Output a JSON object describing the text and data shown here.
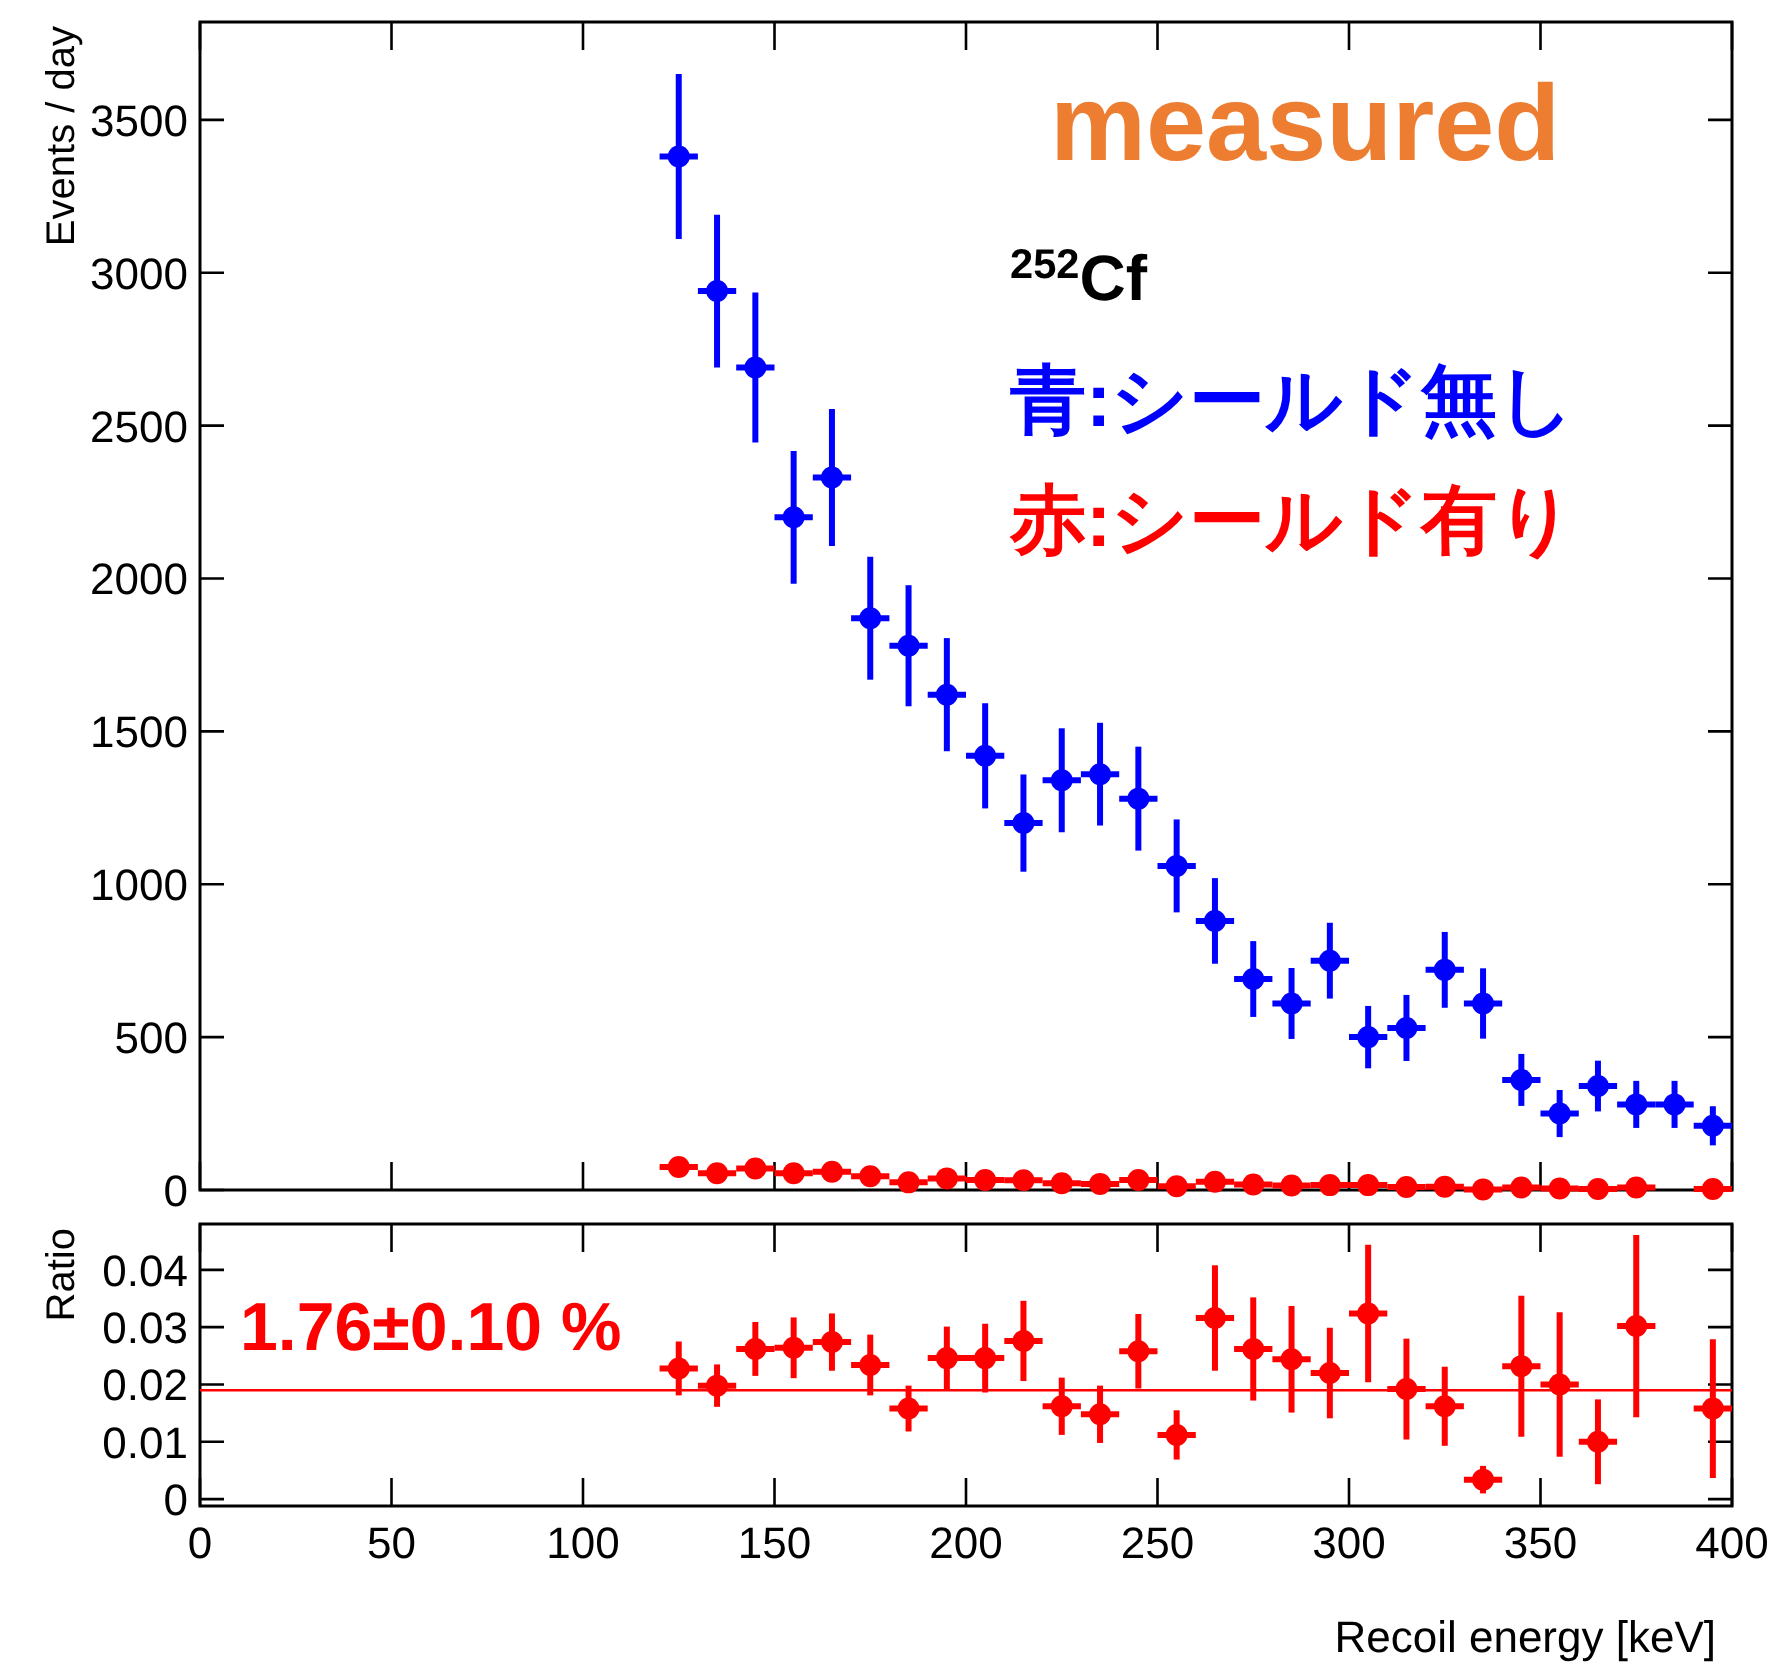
{
  "chart_data": [
    {
      "type": "scatter",
      "ylabel": "Events / day",
      "xlim": [
        0,
        400
      ],
      "xticks": [
        0,
        50,
        100,
        150,
        200,
        250,
        300,
        350,
        400
      ],
      "ylim": [
        0,
        3820
      ],
      "yticks": [
        0,
        500,
        1000,
        1500,
        2000,
        2500,
        3000,
        3500
      ],
      "tick_labels": "y",
      "marker": "circle",
      "legend": "top right",
      "grid": false,
      "x": [
        125,
        135,
        145,
        155,
        165,
        175,
        185,
        195,
        205,
        215,
        225,
        235,
        245,
        255,
        265,
        275,
        285,
        295,
        305,
        315,
        325,
        335,
        345,
        355,
        365,
        375,
        385,
        395
      ],
      "series": [
        {
          "name": "青:シールド無し",
          "color": "#0000ff",
          "values": [
            3380,
            2940,
            2690,
            2200,
            2330,
            1870,
            1780,
            1620,
            1420,
            1200,
            1340,
            1360,
            1280,
            1060,
            880,
            690,
            610,
            750,
            500,
            530,
            720,
            610,
            360,
            250,
            340,
            280,
            280,
            210
          ],
          "errors": [
            270,
            250,
            245,
            217,
            224,
            201,
            198,
            185,
            172,
            159,
            170,
            168,
            170,
            152,
            140,
            124,
            116,
            124,
            102,
            108,
            124,
            115,
            85,
            77,
            83,
            77,
            77,
            64
          ],
          "xerrors": [
            5,
            5,
            5,
            5,
            5,
            5,
            5,
            5,
            5,
            5,
            5,
            5,
            5,
            5,
            5,
            5,
            5,
            5,
            5,
            5,
            5,
            5,
            5,
            5,
            5,
            5,
            5,
            5
          ]
        },
        {
          "name": "赤:シールド有り",
          "color": "#ff0000",
          "values": [
            75,
            55,
            70,
            55,
            60,
            45,
            25,
            38,
            33,
            32,
            22,
            20,
            33,
            12,
            27,
            18,
            15,
            16,
            16,
            10,
            11,
            2,
            8,
            5,
            3,
            8,
            null,
            3
          ],
          "xerrors": [
            5,
            5,
            5,
            5,
            5,
            5,
            5,
            5,
            5,
            5,
            5,
            5,
            5,
            5,
            5,
            5,
            5,
            5,
            5,
            5,
            5,
            5,
            5,
            5,
            5,
            5,
            null,
            5
          ]
        }
      ],
      "annotations": [
        "measured",
        "$^{252}$Cf"
      ]
    },
    {
      "type": "scatter",
      "ylabel": "Ratio",
      "xlabel": "Recoil energy [keV]",
      "xlim": [
        0,
        400
      ],
      "xticks": [
        0,
        50,
        100,
        150,
        200,
        250,
        300,
        350,
        400
      ],
      "ylim": [
        -0.0012,
        0.048
      ],
      "yticks": [
        0,
        0.01,
        0.02,
        0.03,
        0.04
      ],
      "marker": "circle",
      "grid": false,
      "x": [
        125,
        135,
        145,
        155,
        165,
        175,
        185,
        195,
        205,
        215,
        225,
        235,
        245,
        255,
        265,
        275,
        285,
        295,
        305,
        315,
        325,
        335,
        345,
        355,
        365,
        375,
        385,
        395
      ],
      "series": [
        {
          "color": "#ff0000",
          "values": [
            0.0228,
            0.0198,
            0.0262,
            0.0264,
            0.0274,
            0.0234,
            0.0158,
            0.0246,
            0.0246,
            0.0276,
            0.0162,
            0.0148,
            0.0258,
            0.0112,
            0.0316,
            0.0262,
            0.0244,
            0.022,
            0.0324,
            0.0192,
            0.0162,
            0.0034,
            0.0232,
            0.02,
            0.01,
            0.0302,
            null,
            0.0158
          ],
          "errors": [
            0.0047,
            0.0037,
            0.0047,
            0.0053,
            0.005,
            0.0053,
            0.004,
            0.0055,
            0.006,
            0.007,
            0.005,
            0.005,
            0.0065,
            0.0043,
            0.0092,
            0.009,
            0.0093,
            0.0079,
            0.012,
            0.0088,
            0.0069,
            0.0024,
            0.0123,
            0.0126,
            0.0074,
            0.0159,
            null,
            0.0121
          ],
          "xerrors": [
            5,
            5,
            5,
            5,
            5,
            5,
            5,
            5,
            5,
            5,
            5,
            5,
            5,
            5,
            5,
            5,
            5,
            5,
            5,
            5,
            5,
            5,
            5,
            5,
            5,
            5,
            null,
            5
          ]
        }
      ],
      "annotations": [
        "1.76±0.10 %"
      ],
      "ref_lines": [
        {
          "axis": "y",
          "value": 0.019,
          "color": "#ff0000"
        }
      ]
    }
  ]
}
